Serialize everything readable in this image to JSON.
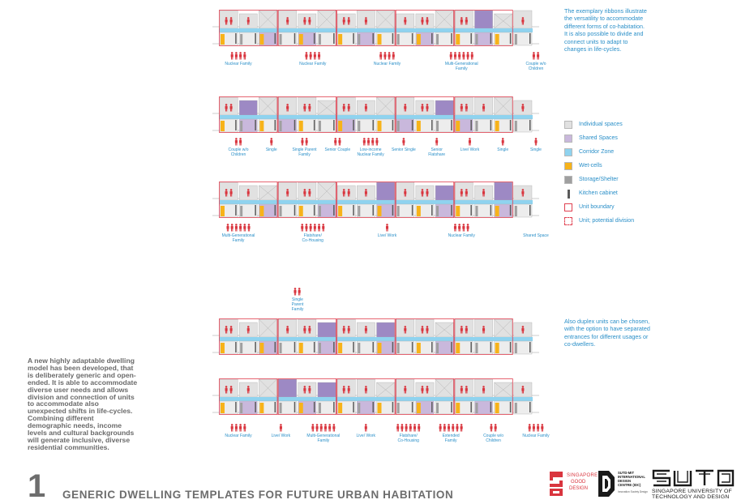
{
  "notes": {
    "top": "The exemplary ribbons illustrate the versatility to accommodate different forms of co-habitation. It is also possible to divide and connect units to adapt to changes in life-cycles.",
    "duplex": "Also duplex units can be chosen, with the option to have separated entrances for different usages or co-dwellers."
  },
  "lead_text": "A new highly adaptable dwelling model has been developed, that is deliberately generic and open-ended. It is able to accommodate diverse user needs and allows division and connection of units to accommodate also unexpected shifts in life-cycles. Combining different demographic needs, income levels and cultural backgrounds will generate inclusive, diverse residential communities.",
  "title": {
    "number": "1",
    "text": "GENERIC DWELLING TEMPLATES FOR FUTURE URBAN HABITATION"
  },
  "legend": [
    {
      "label": "Individual spaces",
      "kind": "individual"
    },
    {
      "label": "Shared Spaces",
      "kind": "shared"
    },
    {
      "label": "Corridor Zone",
      "kind": "corridor"
    },
    {
      "label": "Wet-cells",
      "kind": "wet"
    },
    {
      "label": "Storage/Shelter",
      "kind": "storage"
    },
    {
      "label": "Kitchen cabinet",
      "kind": "kitchen"
    },
    {
      "label": "Unit boundary",
      "kind": "boundary"
    },
    {
      "label": "Unit; potential division",
      "kind": "division"
    }
  ],
  "colors": {
    "individual": "#e1e1e1",
    "shared": "#c9b8dc",
    "shared_dark": "#9d89c4",
    "corridor": "#8fd3ef",
    "wet": "#f7b31a",
    "storage": "#9f9f9f",
    "kitchen": "#5a5a5a",
    "boundary": "#e04050",
    "figure": "#d9353e",
    "text_blue": "#2a8fc8",
    "text_grey": "#6a6a6a"
  },
  "ribbons": [
    {
      "top_wide": [
        0,
        2,
        3,
        5,
        7,
        8,
        11,
        12,
        13,
        15
      ],
      "top_shared": [
        13
      ],
      "bottom_shared": [
        2,
        4,
        7,
        10,
        13
      ],
      "labels": [
        {
          "text": "Nuclear Family",
          "n": 4
        },
        {
          "text": "Nuclear Family",
          "n": 4
        },
        {
          "text": "Nuclear Family",
          "n": 4
        },
        {
          "text": "Multi-Generational Family",
          "n": 6
        },
        {
          "text": "Couple w/o Children",
          "n": 2
        }
      ]
    },
    {
      "top_wide": [
        0,
        2,
        3,
        4,
        6,
        8,
        9,
        12,
        13,
        14
      ],
      "top_shared": [
        1,
        11
      ],
      "bottom_shared": [
        1,
        3,
        6,
        9,
        12
      ],
      "labels": [
        {
          "text": "Couple w/o Children",
          "n": 2
        },
        {
          "text": "Single",
          "n": 1
        },
        {
          "text": "Single Parent Family",
          "n": 2
        },
        {
          "text": "Senior Couple",
          "n": 2
        },
        {
          "text": "Low-income Nuclear Family",
          "n": 4
        },
        {
          "text": "Senior Single",
          "n": 1
        },
        {
          "text": "Senior Flatshare",
          "n": 1
        },
        {
          "text": "Live/ Work",
          "n": 1
        },
        {
          "text": "Single",
          "n": 1
        },
        {
          "text": "Single",
          "n": 1
        }
      ]
    },
    {
      "top_wide": [
        0,
        3,
        4,
        5,
        8,
        9,
        12,
        14
      ],
      "top_shared": [
        8,
        11,
        14
      ],
      "bottom_shared": [
        2,
        5,
        8,
        11,
        14
      ],
      "labels": [
        {
          "text": "Multi-Generational Family",
          "n": 6
        },
        {
          "text": "Flatshare/ Co-Housing",
          "n": 6
        },
        {
          "text": "Live/ Work",
          "n": 1
        },
        {
          "text": "Nuclear Family",
          "n": 4
        },
        {
          "text": "Shared Space",
          "n": 0
        }
      ]
    },
    {
      "top_wide": [
        0,
        2,
        3,
        4,
        6,
        9,
        10,
        12,
        13,
        14
      ],
      "top_shared": [
        5,
        8
      ],
      "bottom_shared": [
        2,
        5,
        8,
        11
      ],
      "labels": [
        {
          "text": "Single Parent Family",
          "n": 2
        }
      ]
    },
    {
      "top_wide": [
        0,
        2,
        3,
        6,
        7,
        9,
        11,
        12,
        13
      ],
      "top_shared": [
        3,
        5
      ],
      "bottom_shared": [
        1,
        4,
        7,
        10,
        13
      ],
      "labels": [
        {
          "text": "Nuclear Family",
          "n": 4
        },
        {
          "text": "Live/ Work",
          "n": 1
        },
        {
          "text": "Multi-Generational Family",
          "n": 6
        },
        {
          "text": "Live/ Work",
          "n": 1
        },
        {
          "text": "Flatshare/ Co-Housing",
          "n": 6
        },
        {
          "text": "Extended Family",
          "n": 6
        },
        {
          "text": "Couple w/o Children",
          "n": 2
        },
        {
          "text": "Nuclear Family",
          "n": 4
        }
      ]
    }
  ],
  "logos": {
    "sgd": {
      "line1": "SINGAPORE",
      "line2": "GOOD",
      "line3": "DESIGN"
    },
    "idc": {
      "line1": "SUTD-MIT",
      "line2": "INTERNATIONAL",
      "line3": "DESIGN",
      "line4": "CENTRE (IDC)",
      "line5": "Innovation Society Design"
    },
    "sutd": {
      "line1": "SINGAPORE UNIVERSITY OF",
      "line2": "TECHNOLOGY AND DESIGN"
    }
  }
}
